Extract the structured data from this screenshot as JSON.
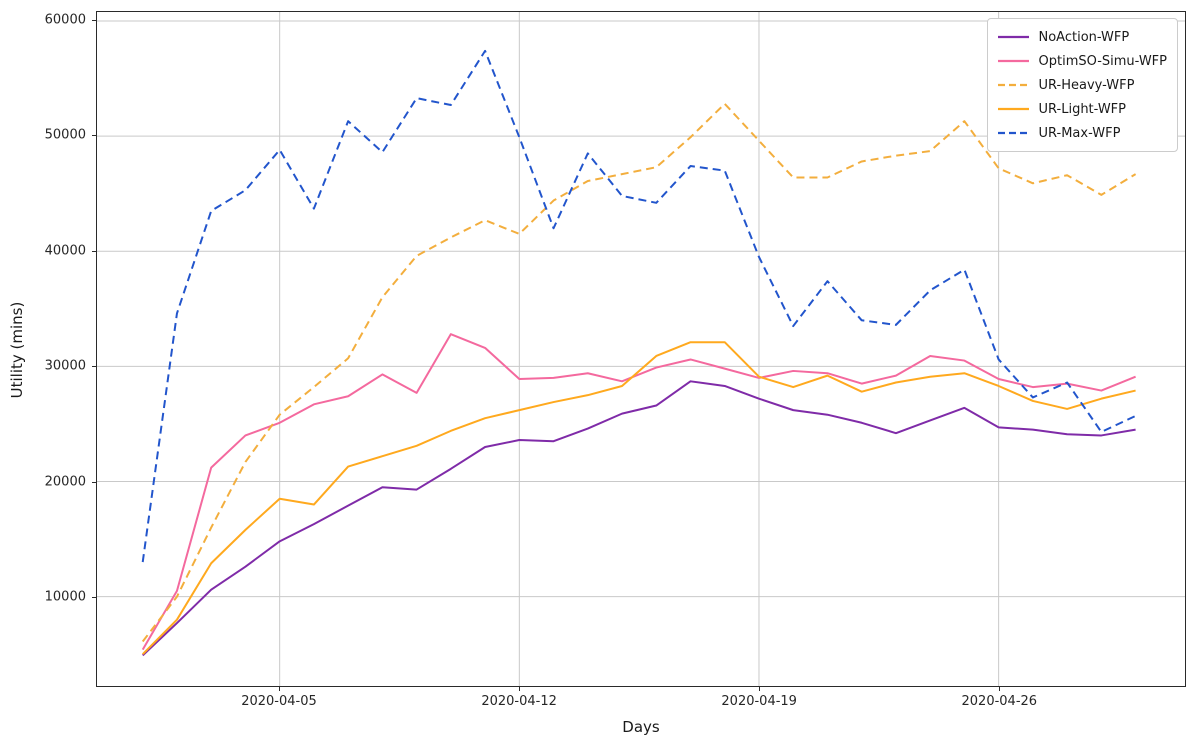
{
  "figure": {
    "xlabel": "Days",
    "ylabel": "Utility (mins)"
  },
  "chart_data": {
    "type": "line",
    "title": "",
    "xlabel": "Days",
    "ylabel": "Utility (mins)",
    "grid": true,
    "legend_position": "upper right",
    "x": [
      "2020-04-01",
      "2020-04-02",
      "2020-04-03",
      "2020-04-04",
      "2020-04-05",
      "2020-04-06",
      "2020-04-07",
      "2020-04-08",
      "2020-04-09",
      "2020-04-10",
      "2020-04-11",
      "2020-04-12",
      "2020-04-13",
      "2020-04-14",
      "2020-04-15",
      "2020-04-16",
      "2020-04-17",
      "2020-04-18",
      "2020-04-19",
      "2020-04-20",
      "2020-04-21",
      "2020-04-22",
      "2020-04-23",
      "2020-04-24",
      "2020-04-25",
      "2020-04-26",
      "2020-04-27",
      "2020-04-28",
      "2020-04-29",
      "2020-04-30"
    ],
    "x_tick_days": [
      5,
      12,
      19,
      26
    ],
    "x_tick_labels": [
      "2020-04-05",
      "2020-04-12",
      "2020-04-19",
      "2020-04-26"
    ],
    "y_ticks": [
      10000,
      20000,
      30000,
      40000,
      50000,
      60000
    ],
    "y_tick_labels": [
      "10000",
      "20000",
      "30000",
      "40000",
      "50000",
      "60000"
    ],
    "ylim": [
      2240,
      60780
    ],
    "series": [
      {
        "name": "NoAction-WFP",
        "color": "#7F2BA8",
        "dash": false,
        "values": [
          4900,
          7700,
          10600,
          12600,
          14800,
          16300,
          17900,
          19500,
          19300,
          21100,
          23000,
          23600,
          23500,
          24600,
          25900,
          26600,
          28700,
          28300,
          27200,
          26200,
          25800,
          25100,
          24200,
          25300,
          26400,
          24700,
          24500,
          24100,
          24000,
          24500
        ]
      },
      {
        "name": "OptimSO-Simu-WFP",
        "color": "#F4699E",
        "dash": false,
        "values": [
          5400,
          10500,
          21200,
          24000,
          25100,
          26700,
          27400,
          29300,
          27700,
          32800,
          31600,
          28900,
          29000,
          29400,
          28700,
          29900,
          30600,
          29800,
          29000,
          29600,
          29400,
          28500,
          29200,
          30900,
          30500,
          28900,
          28200,
          28500,
          27900,
          29100
        ]
      },
      {
        "name": "UR-Heavy-WFP",
        "color": "#F3AE3D",
        "dash": true,
        "values": [
          6100,
          10000,
          16000,
          21700,
          25800,
          28200,
          30700,
          36000,
          39600,
          41200,
          42700,
          41500,
          44400,
          46100,
          46700,
          47300,
          49900,
          52800,
          49600,
          46400,
          46400,
          47800,
          48300,
          48700,
          51300,
          47200,
          45900,
          46600,
          44900,
          46700
        ]
      },
      {
        "name": "UR-Light-WFP",
        "color": "#FFA91E",
        "dash": false,
        "values": [
          5000,
          8000,
          12900,
          15800,
          18500,
          18000,
          21300,
          22200,
          23100,
          24400,
          25500,
          26200,
          26900,
          27500,
          28300,
          30900,
          32100,
          32100,
          29100,
          28200,
          29200,
          27800,
          28600,
          29100,
          29400,
          28300,
          27000,
          26300,
          27200,
          27900
        ]
      },
      {
        "name": "UR-Max-WFP",
        "color": "#2255CC",
        "dash": true,
        "values": [
          13000,
          34600,
          43500,
          45300,
          48800,
          43700,
          51300,
          48600,
          53300,
          52700,
          57400,
          49900,
          42000,
          48500,
          44800,
          44200,
          47400,
          47000,
          39500,
          33500,
          37400,
          34000,
          33600,
          36600,
          38400,
          30600,
          27300,
          28600,
          24300,
          25700
        ]
      }
    ]
  }
}
